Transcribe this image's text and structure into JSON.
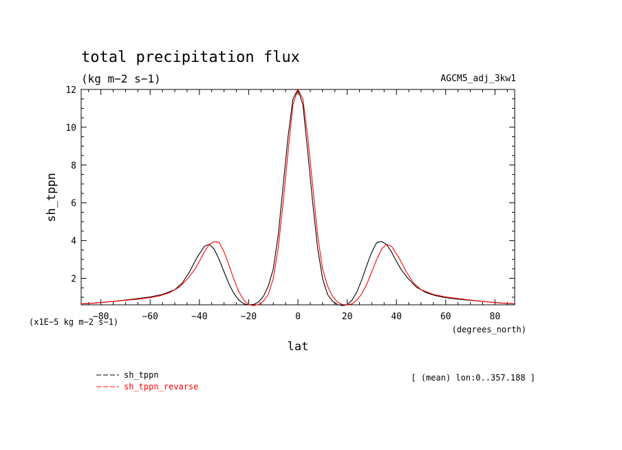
{
  "chart_data": {
    "type": "line",
    "title": "total precipitation flux",
    "subtitle": "(kg m−2 s−1)",
    "experiment": "AGCM5_adj_3kw1",
    "xlabel": "lat",
    "ylabel": "sh_tppn",
    "x_units": "(degrees_north)",
    "y_units": "(x1E−5 kg m−2 s−1)",
    "averaging_note": "[ (mean) lon:0..357.188 ]",
    "xlim": [
      -88,
      88
    ],
    "ylim": [
      0.6,
      12
    ],
    "x_ticks": [
      -80,
      -60,
      -40,
      -20,
      0,
      20,
      40,
      60,
      80
    ],
    "y_ticks": [
      2,
      4,
      6,
      8,
      10,
      12
    ],
    "grid": false,
    "legend_position": "bottom-left",
    "series": [
      {
        "name": "sh_tppn",
        "color": "#000000",
        "x": [
          -88,
          -84,
          -80,
          -75,
          -70,
          -65,
          -60,
          -55,
          -50,
          -47,
          -44,
          -41,
          -38,
          -36,
          -34,
          -32,
          -30,
          -28,
          -26,
          -24,
          -22,
          -20,
          -18,
          -16,
          -14,
          -12,
          -10,
          -8,
          -6,
          -4,
          -2,
          0,
          2,
          4,
          6,
          8,
          10,
          12,
          14,
          16,
          18,
          20,
          22,
          24,
          26,
          28,
          30,
          32,
          34,
          36,
          38,
          40,
          42,
          45,
          48,
          52,
          56,
          60,
          65,
          70,
          75,
          80,
          84,
          88
        ],
        "y": [
          0.65,
          0.68,
          0.72,
          0.78,
          0.85,
          0.93,
          1.02,
          1.15,
          1.4,
          1.75,
          2.35,
          3.1,
          3.7,
          3.8,
          3.55,
          3.0,
          2.35,
          1.7,
          1.2,
          0.85,
          0.65,
          0.6,
          0.62,
          0.75,
          1.05,
          1.6,
          2.5,
          4.3,
          6.9,
          9.5,
          11.5,
          12.0,
          11.2,
          8.7,
          6.0,
          3.6,
          2.0,
          1.15,
          0.8,
          0.62,
          0.56,
          0.6,
          0.85,
          1.3,
          1.95,
          2.7,
          3.4,
          3.9,
          3.95,
          3.8,
          3.4,
          2.9,
          2.45,
          1.95,
          1.55,
          1.25,
          1.08,
          0.98,
          0.9,
          0.84,
          0.78,
          0.72,
          0.68,
          0.65
        ]
      },
      {
        "name": "sh_tppn_revarse",
        "color": "#ff0000",
        "x": [
          -88,
          -84,
          -80,
          -75,
          -70,
          -65,
          -60,
          -56,
          -52,
          -48,
          -45,
          -42,
          -40,
          -38,
          -36,
          -34,
          -32,
          -30,
          -28,
          -26,
          -24,
          -22,
          -20,
          -18,
          -16,
          -14,
          -12,
          -10,
          -8,
          -6,
          -4,
          -2,
          0,
          2,
          4,
          6,
          8,
          10,
          12,
          14,
          16,
          18,
          20,
          22,
          24,
          26,
          28,
          30,
          32,
          34,
          36,
          38,
          41,
          44,
          47,
          50,
          55,
          60,
          65,
          70,
          75,
          80,
          84,
          88
        ],
        "y": [
          0.65,
          0.68,
          0.72,
          0.78,
          0.84,
          0.9,
          0.98,
          1.08,
          1.25,
          1.55,
          1.95,
          2.45,
          2.9,
          3.4,
          3.8,
          3.95,
          3.9,
          3.4,
          2.7,
          1.95,
          1.3,
          0.85,
          0.6,
          0.56,
          0.62,
          0.8,
          1.15,
          2.0,
          3.6,
          6.0,
          8.7,
          11.2,
          12.0,
          11.5,
          9.5,
          6.9,
          4.3,
          2.5,
          1.6,
          1.05,
          0.75,
          0.62,
          0.6,
          0.65,
          0.85,
          1.2,
          1.7,
          2.35,
          3.0,
          3.55,
          3.8,
          3.7,
          3.1,
          2.35,
          1.75,
          1.4,
          1.15,
          1.02,
          0.93,
          0.85,
          0.78,
          0.72,
          0.68,
          0.65
        ]
      }
    ]
  }
}
